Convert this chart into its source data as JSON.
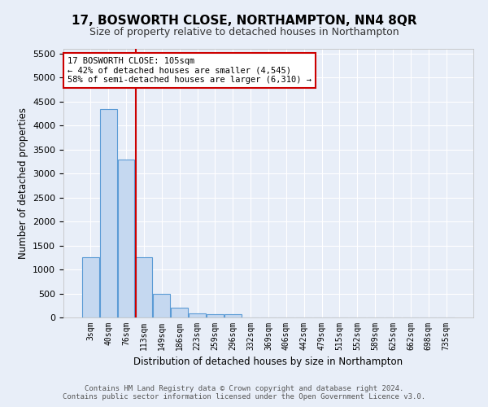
{
  "title": "17, BOSWORTH CLOSE, NORTHAMPTON, NN4 8QR",
  "subtitle": "Size of property relative to detached houses in Northampton",
  "xlabel": "Distribution of detached houses by size in Northampton",
  "ylabel": "Number of detached properties",
  "bar_color": "#c5d8f0",
  "bar_edge_color": "#5b9bd5",
  "categories": [
    "3sqm",
    "40sqm",
    "76sqm",
    "113sqm",
    "149sqm",
    "186sqm",
    "223sqm",
    "259sqm",
    "296sqm",
    "332sqm",
    "369sqm",
    "406sqm",
    "442sqm",
    "479sqm",
    "515sqm",
    "552sqm",
    "589sqm",
    "625sqm",
    "662sqm",
    "698sqm",
    "735sqm"
  ],
  "values": [
    1260,
    4350,
    3300,
    1260,
    490,
    210,
    90,
    60,
    60,
    0,
    0,
    0,
    0,
    0,
    0,
    0,
    0,
    0,
    0,
    0,
    0
  ],
  "vline_x_index": 2.55,
  "vline_color": "#cc0000",
  "annotation_text": "17 BOSWORTH CLOSE: 105sqm\n← 42% of detached houses are smaller (4,545)\n58% of semi-detached houses are larger (6,310) →",
  "annotation_box_color": "#ffffff",
  "annotation_box_edge_color": "#cc0000",
  "ylim": [
    0,
    5600
  ],
  "yticks": [
    0,
    500,
    1000,
    1500,
    2000,
    2500,
    3000,
    3500,
    4000,
    4500,
    5000,
    5500
  ],
  "footer_line1": "Contains HM Land Registry data © Crown copyright and database right 2024.",
  "footer_line2": "Contains public sector information licensed under the Open Government Licence v3.0.",
  "background_color": "#e8eef8",
  "grid_color": "#ffffff",
  "title_fontsize": 11,
  "subtitle_fontsize": 9,
  "annotation_fontsize": 7.5
}
